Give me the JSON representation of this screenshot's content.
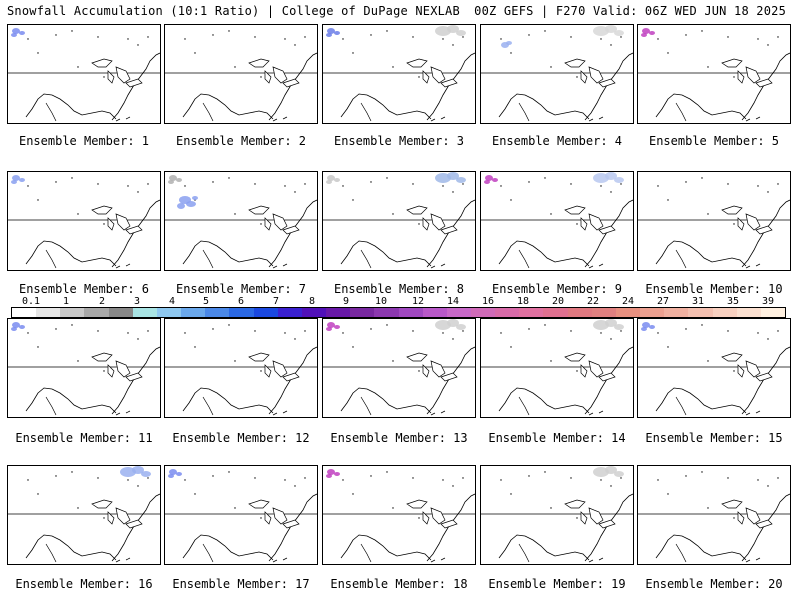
{
  "header": {
    "left": "Snowfall Accumulation (10:1 Ratio) | College of DuPage NEXLAB",
    "right": "00Z GEFS | F270 Valid: 06Z WED JUN 18 2025"
  },
  "panels": [
    {
      "label": "Ensemble Member: 1",
      "snow": [
        {
          "region": "nw",
          "color": "#7a8cf0"
        }
      ]
    },
    {
      "label": "Ensemble Member: 2",
      "snow": []
    },
    {
      "label": "Ensemble Member: 3",
      "snow": [
        {
          "region": "nw",
          "color": "#6a7ce8"
        },
        {
          "region": "ne",
          "color": "#d0d0d0"
        }
      ]
    },
    {
      "label": "Ensemble Member: 4",
      "snow": [
        {
          "region": "mont",
          "color": "#9ab0f0"
        },
        {
          "region": "ne",
          "color": "#d8d8d8"
        }
      ]
    },
    {
      "label": "Ensemble Member: 5",
      "snow": [
        {
          "region": "nw",
          "color": "#c040c0"
        }
      ]
    },
    {
      "label": "Ensemble Member: 6",
      "snow": [
        {
          "region": "nw",
          "color": "#8aa0f0"
        }
      ]
    },
    {
      "label": "Ensemble Member: 7",
      "snow": [
        {
          "region": "rockies",
          "color": "#8aa0f0"
        },
        {
          "region": "nw",
          "color": "#b0b0b0"
        }
      ]
    },
    {
      "label": "Ensemble Member: 8",
      "snow": [
        {
          "region": "ne",
          "color": "#a0b8e8"
        },
        {
          "region": "nw",
          "color": "#c8c8c8"
        }
      ]
    },
    {
      "label": "Ensemble Member: 9",
      "snow": [
        {
          "region": "nw",
          "color": "#c040c0"
        },
        {
          "region": "ne",
          "color": "#b8c8f0"
        }
      ]
    },
    {
      "label": "Ensemble Member: 10",
      "snow": []
    },
    {
      "label": "Ensemble Member: 11",
      "snow": [
        {
          "region": "nw",
          "color": "#7a8cf0"
        }
      ]
    },
    {
      "label": "Ensemble Member: 12",
      "snow": []
    },
    {
      "label": "Ensemble Member: 13",
      "snow": [
        {
          "region": "nw",
          "color": "#c040c0"
        },
        {
          "region": "ne",
          "color": "#d0d0d0"
        }
      ]
    },
    {
      "label": "Ensemble Member: 14",
      "snow": [
        {
          "region": "ne",
          "color": "#d0d0d0"
        }
      ]
    },
    {
      "label": "Ensemble Member: 15",
      "snow": [
        {
          "region": "nw",
          "color": "#7a8cf0"
        }
      ]
    },
    {
      "label": "Ensemble Member: 16",
      "snow": [
        {
          "region": "ne",
          "color": "#9ab0f0"
        }
      ]
    },
    {
      "label": "Ensemble Member: 17",
      "snow": [
        {
          "region": "nw",
          "color": "#7a8cf0"
        }
      ]
    },
    {
      "label": "Ensemble Member: 18",
      "snow": [
        {
          "region": "nw",
          "color": "#c040c0"
        }
      ]
    },
    {
      "label": "Ensemble Member: 19",
      "snow": [
        {
          "region": "ne",
          "color": "#d0d0d0"
        }
      ]
    },
    {
      "label": "Ensemble Member: 20",
      "snow": []
    }
  ],
  "colorbar": {
    "labels": [
      "0.1",
      "1",
      "2",
      "3",
      "4",
      "5",
      "6",
      "7",
      "8",
      "9",
      "10",
      "12",
      "14",
      "16",
      "18",
      "20",
      "22",
      "24",
      "27",
      "31",
      "35",
      "39"
    ],
    "colors": [
      "#ffffff",
      "#e6e6e6",
      "#c8c8c8",
      "#a8a8a8",
      "#888888",
      "#a8e4e4",
      "#8ec8f0",
      "#6aa8ec",
      "#4a88e8",
      "#2a68e4",
      "#1a48e0",
      "#3a20d0",
      "#5010b8",
      "#6818a8",
      "#7828a0",
      "#8c38b0",
      "#a048c0",
      "#b858c8",
      "#c868c8",
      "#d06ab8",
      "#d86aa8",
      "#e070a0",
      "#e07090",
      "#e07880",
      "#e08080",
      "#e89080",
      "#eca090",
      "#f0b0a0",
      "#f4c0b0",
      "#f8d0c0",
      "#fbe0d0",
      "#fff0e0"
    ]
  }
}
